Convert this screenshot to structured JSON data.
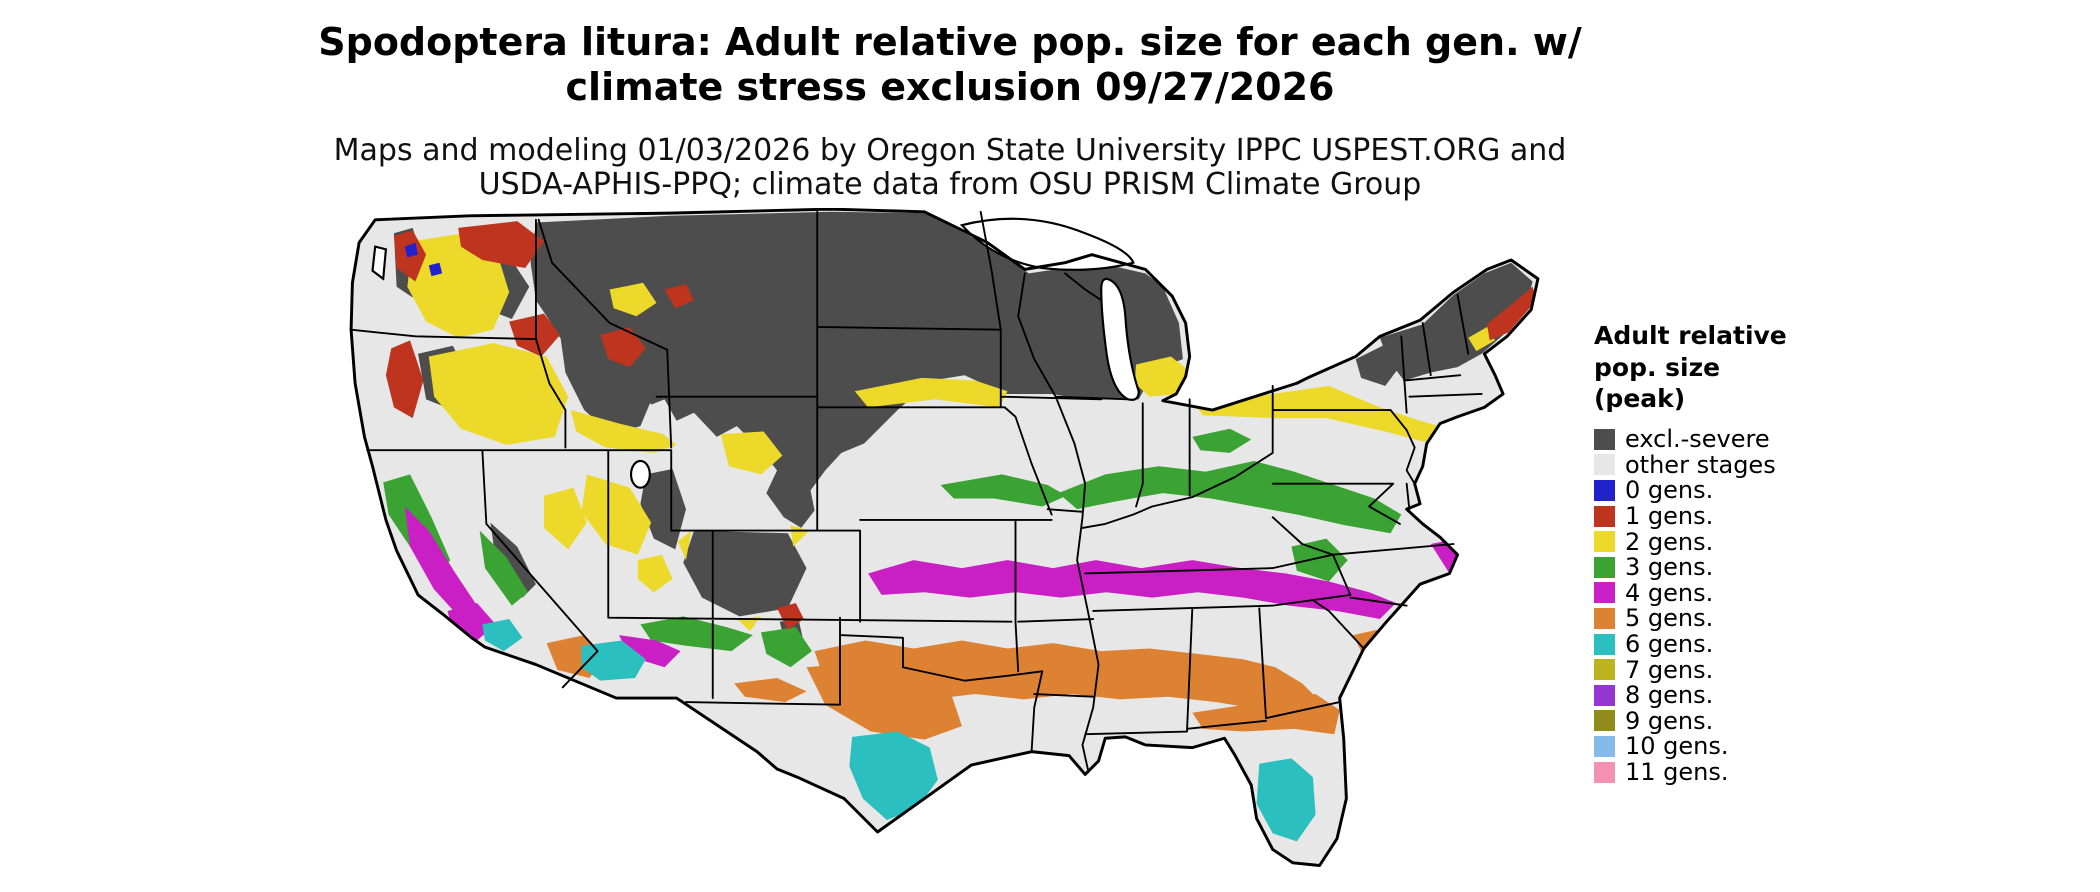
{
  "title": {
    "line1": "Spodoptera litura: Adult relative pop. size for each gen. w/",
    "line2": "climate stress exclusion 09/27/2026"
  },
  "subtitle": {
    "line1": "Maps and modeling 01/03/2026 by Oregon State University IPPC USPEST.ORG and",
    "line2": "USDA-APHIS-PPQ; climate data from OSU PRISM Climate Group"
  },
  "legend": {
    "title_lines": [
      "Adult relative",
      "pop. size",
      "(peak)"
    ],
    "items": [
      {
        "key": "excl",
        "label": "excl.-severe",
        "color": "#4D4D4D"
      },
      {
        "key": "other",
        "label": "other stages",
        "color": "#E7E7E7"
      },
      {
        "key": "g0",
        "label": "0 gens.",
        "color": "#2222CC"
      },
      {
        "key": "g1",
        "label": "1 gens.",
        "color": "#BE341F"
      },
      {
        "key": "g2",
        "label": "2 gens.",
        "color": "#EDD929"
      },
      {
        "key": "g3",
        "label": "3 gens.",
        "color": "#3AA333"
      },
      {
        "key": "g4",
        "label": "4 gens.",
        "color": "#C91FC4"
      },
      {
        "key": "g5",
        "label": "5 gens.",
        "color": "#DD8233"
      },
      {
        "key": "g6",
        "label": "6 gens.",
        "color": "#2BBFBF"
      },
      {
        "key": "g7",
        "label": "7 gens.",
        "color": "#BCB41E"
      },
      {
        "key": "g8",
        "label": "8 gens.",
        "color": "#9636D1"
      },
      {
        "key": "g9",
        "label": "9 gens.",
        "color": "#8F8C1C"
      },
      {
        "key": "g10",
        "label": "10 gens.",
        "color": "#85BBE8"
      },
      {
        "key": "g11",
        "label": "11 gens.",
        "color": "#F591B0"
      }
    ]
  },
  "map": {
    "region": "Continental United States",
    "base_fill_label": "other stages",
    "border_color": "#000000",
    "background": "#FFFFFF"
  }
}
